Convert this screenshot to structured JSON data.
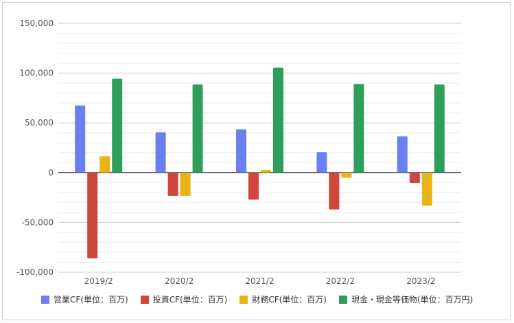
{
  "chart_data": {
    "type": "bar",
    "categories": [
      "2019/2",
      "2020/2",
      "2021/2",
      "2022/2",
      "2023/2"
    ],
    "series": [
      {
        "name": "営業CF(単位：百万)",
        "color": "#6a7ff0",
        "values": [
          67500,
          40500,
          43500,
          20500,
          36500
        ]
      },
      {
        "name": "投資CF(単位：百万)",
        "color": "#d0453c",
        "values": [
          -86000,
          -23500,
          -27000,
          -37000,
          -10500
        ]
      },
      {
        "name": "財務CF(単位：百万)",
        "color": "#e9b417",
        "values": [
          16500,
          -23500,
          2500,
          -5000,
          -33000
        ]
      },
      {
        "name": "現金・現金等価物(単位：百万円)",
        "color": "#2e9f5b",
        "values": [
          94500,
          88500,
          105500,
          89000,
          88500
        ]
      }
    ],
    "yticks": [
      "150,000",
      "100,000",
      "50,000",
      "0",
      "-50,000",
      "-100,000"
    ],
    "ytick_values": [
      150000,
      100000,
      50000,
      0,
      -50000,
      -100000
    ],
    "ylim": [
      -100000,
      150000
    ],
    "minor_grid": true,
    "legend_position": "bottom",
    "title": "",
    "xlabel": "",
    "ylabel": ""
  }
}
